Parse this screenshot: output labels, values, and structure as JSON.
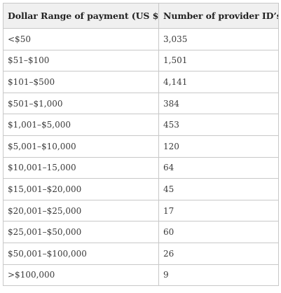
{
  "table": {
    "headers": [
      "Dollar Range of payment (US $)",
      "Number of provider ID’s"
    ],
    "rows": [
      {
        "range": "<$50",
        "count": "3,035"
      },
      {
        "range": "$51–$100",
        "count": "1,501"
      },
      {
        "range": "$101–$500",
        "count": "4,141"
      },
      {
        "range": "$501–$1,000",
        "count": "384"
      },
      {
        "range": "$1,001–$5,000",
        "count": "453"
      },
      {
        "range": "$5,001–$10,000",
        "count": "120"
      },
      {
        "range": "$10,001–15,000",
        "count": "64"
      },
      {
        "range": "$15,001–$20,000",
        "count": "45"
      },
      {
        "range": "$20,001–$25,000",
        "count": "17"
      },
      {
        "range": "$25,001–$50,000",
        "count": "60"
      },
      {
        "range": "$50,001–$100,000",
        "count": "26"
      },
      {
        "range": ">$100,000",
        "count": "9"
      }
    ]
  }
}
